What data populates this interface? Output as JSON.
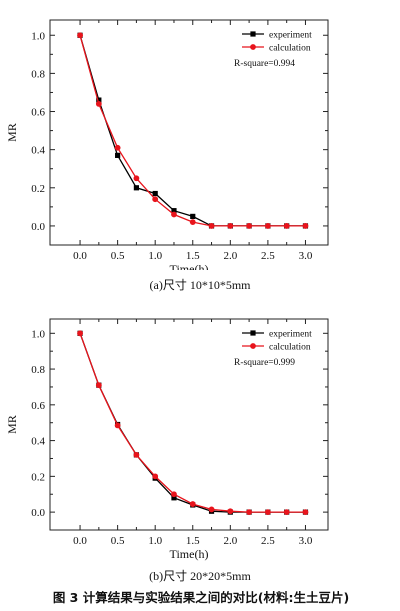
{
  "charts": [
    {
      "xlabel": "Time(h)",
      "ylabel": "MR",
      "caption": "(a)尺寸 10*10*5mm"
    },
    {
      "xlabel": "Time(h)",
      "ylabel": "MR",
      "caption": "(b)尺寸 20*20*5mm"
    }
  ],
  "figure_caption": "图 3  计算结果与实验结果之间的对比(材料:生土豆片)",
  "chart_data": [
    {
      "type": "line",
      "xlabel": "Time(h)",
      "ylabel": "MR",
      "xlim": [
        -0.4,
        3.3
      ],
      "ylim": [
        -0.1,
        1.08
      ],
      "xticks": [
        "0.0",
        "0.5",
        "1.0",
        "1.5",
        "2.0",
        "2.5",
        "3.0"
      ],
      "yticks": [
        "0.0",
        "0.2",
        "0.4",
        "0.6",
        "0.8",
        "1.0"
      ],
      "legend_position": "top-right",
      "annotation": "R-square=0.994",
      "series": [
        {
          "name": "experiment",
          "color": "#000000",
          "marker": "square",
          "x": [
            0,
            0.25,
            0.5,
            0.75,
            1.0,
            1.25,
            1.5,
            1.75,
            2.0,
            2.25,
            2.5,
            2.75,
            3.0
          ],
          "y": [
            1.0,
            0.66,
            0.37,
            0.2,
            0.17,
            0.08,
            0.05,
            0.0,
            0.0,
            0.0,
            0.0,
            0.0,
            0.0
          ]
        },
        {
          "name": "calculation",
          "color": "#e8141c",
          "marker": "circle",
          "x": [
            0,
            0.25,
            0.5,
            0.75,
            1.0,
            1.25,
            1.5,
            1.75,
            2.0,
            2.25,
            2.5,
            2.75,
            3.0
          ],
          "y": [
            1.0,
            0.64,
            0.41,
            0.25,
            0.14,
            0.06,
            0.02,
            0.0,
            0.0,
            0.0,
            0.0,
            0.0,
            0.0
          ]
        }
      ]
    },
    {
      "type": "line",
      "xlabel": "Time(h)",
      "ylabel": "MR",
      "xlim": [
        -0.4,
        3.3
      ],
      "ylim": [
        -0.1,
        1.08
      ],
      "xticks": [
        "0.0",
        "0.5",
        "1.0",
        "1.5",
        "2.0",
        "2.5",
        "3.0"
      ],
      "yticks": [
        "0.0",
        "0.2",
        "0.4",
        "0.6",
        "0.8",
        "1.0"
      ],
      "legend_position": "top-right",
      "annotation": "R-square=0.999",
      "series": [
        {
          "name": "experiment",
          "color": "#000000",
          "marker": "square",
          "x": [
            0,
            0.25,
            0.5,
            0.75,
            1.0,
            1.25,
            1.5,
            1.75,
            2.0,
            2.25,
            2.5,
            2.75,
            3.0
          ],
          "y": [
            1.0,
            0.71,
            0.49,
            0.32,
            0.19,
            0.08,
            0.04,
            0.005,
            0.0,
            0.0,
            0.0,
            0.0,
            0.0
          ]
        },
        {
          "name": "calculation",
          "color": "#e8141c",
          "marker": "circle",
          "x": [
            0,
            0.25,
            0.5,
            0.75,
            1.0,
            1.25,
            1.5,
            1.75,
            2.0,
            2.25,
            2.5,
            2.75,
            3.0
          ],
          "y": [
            1.0,
            0.71,
            0.485,
            0.32,
            0.2,
            0.1,
            0.045,
            0.015,
            0.005,
            0.0,
            0.0,
            0.0,
            0.0
          ]
        }
      ]
    }
  ]
}
